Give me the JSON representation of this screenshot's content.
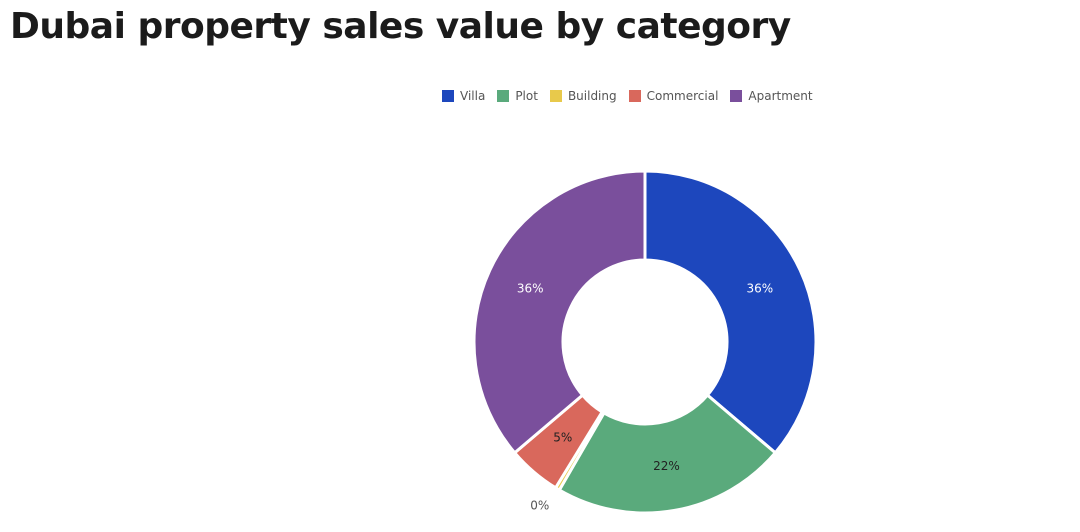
{
  "chart_data": {
    "type": "pie",
    "title": "Dubai property sales value by category",
    "donut": true,
    "legend_position": "top",
    "series": [
      {
        "name": "Villa",
        "value": 36,
        "label": "36%",
        "color": "#1d47bd",
        "label_color": "#ffffff"
      },
      {
        "name": "Plot",
        "value": 22,
        "label": "22%",
        "color": "#5aaa7c",
        "label_color": "#222222"
      },
      {
        "name": "Building",
        "value": 0.4,
        "label": "0%",
        "color": "#e8c94b",
        "label_color": "#555555"
      },
      {
        "name": "Commercial",
        "value": 5,
        "label": "5%",
        "color": "#d9685c",
        "label_color": "#222222"
      },
      {
        "name": "Apartment",
        "value": 36,
        "label": "36%",
        "color": "#7a4f9c",
        "label_color": "#ffffff"
      }
    ]
  }
}
